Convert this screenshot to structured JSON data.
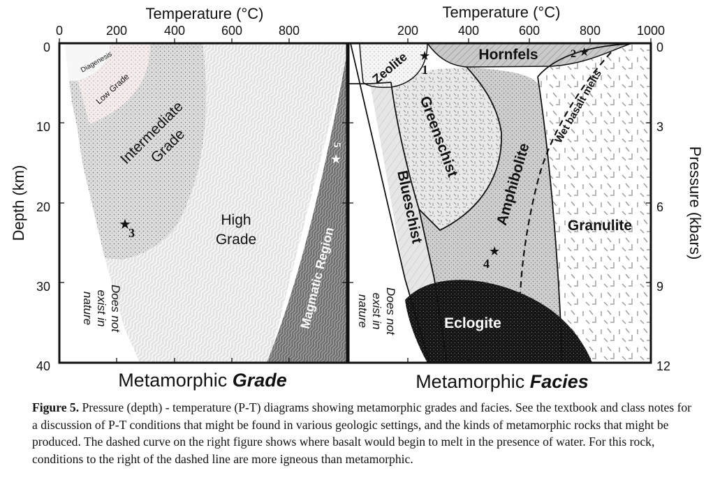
{
  "axes": {
    "top_title_left": "Temperature (°C)",
    "top_title_right": "Temperature (°C)",
    "left_ticks_temp": [
      "0",
      "200",
      "400",
      "600",
      "800"
    ],
    "right_ticks_temp": [
      "200",
      "400",
      "600",
      "800",
      "1000"
    ],
    "depth_title": "Depth (km)",
    "depth_ticks": [
      "0",
      "10",
      "20",
      "30",
      "40"
    ],
    "pressure_title": "Pressure (kbars)",
    "pressure_ticks": [
      "0",
      "3",
      "6",
      "9",
      "12"
    ]
  },
  "grade_panel": {
    "title_plain": "Metamorphic ",
    "title_bold": "Grade",
    "diagenesis": "Diagenesis",
    "low_grade": "Low Grade",
    "intermediate_1": "Intermediate",
    "intermediate_2": "Grade",
    "high_1": "High",
    "high_2": "Grade",
    "magmatic": "Magmatic Region",
    "not_exist_1": "Does not",
    "not_exist_2": "exist in",
    "not_exist_3": "nature",
    "star_3": "3",
    "star_5": "5"
  },
  "facies_panel": {
    "title_plain": "Metamorphic ",
    "title_bold": "Facies",
    "zeolite": "Zeolite",
    "hornfels": "Hornfels",
    "greenschist": "Greenschist",
    "blueschist": "Blueschist",
    "amphibolite": "Amphibolite",
    "granulite": "Granulite",
    "wet_basalt": "Wet basalt melts",
    "eclogite": "Eclogite",
    "not_exist_1": "Does not",
    "not_exist_2": "exist in",
    "not_exist_3": "nature",
    "star_1": "1",
    "star_2": "2",
    "star_4": "4"
  },
  "caption": {
    "label": "Figure 5.",
    "text": " Pressure (depth) - temperature (P-T) diagrams showing metamorphic grades and facies. See the textbook and class notes for a discussion of P-T conditions that might be found in various geologic settings, and the kinds of metamorphic rocks that might be produced. The dashed curve on the right figure shows where basalt would begin to melt in the presence of water. For this rock, conditions to the right of the dashed line are more igneous than metamorphic."
  }
}
